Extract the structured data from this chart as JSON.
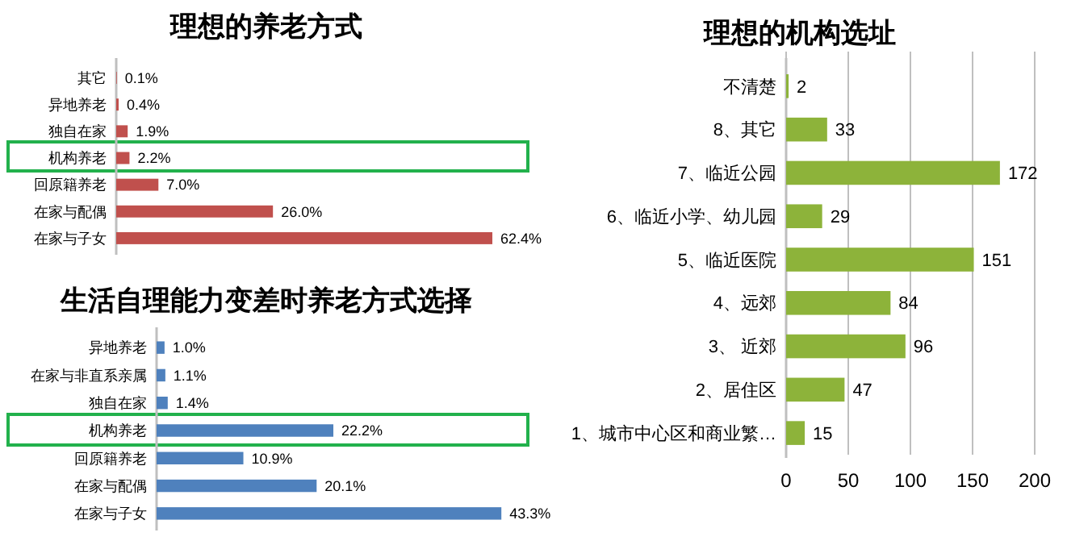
{
  "chart_data": [
    {
      "type": "bar",
      "orientation": "horizontal",
      "title": "理想的养老方式",
      "categories": [
        "其它",
        "异地养老",
        "独自在家",
        "机构养老",
        "回原籍养老",
        "在家与配偶",
        "在家与子女"
      ],
      "series": [
        {
          "color": "#c0504d",
          "values": [
            0.1,
            0.4,
            1.9,
            2.2,
            7.0,
            26.0,
            62.4
          ],
          "value_labels": [
            "0.1%",
            "0.4%",
            "1.9%",
            "2.2%",
            "7.0%",
            "26.0%",
            "62.4%"
          ]
        }
      ]
    },
    {
      "type": "bar",
      "orientation": "horizontal",
      "title": "生活自理能力变差时养老方式选择",
      "categories": [
        "异地养老",
        "在家与非直系亲属",
        "独自在家",
        "机构养老",
        "回原籍养老",
        "在家与配偶",
        "在家与子女"
      ],
      "series": [
        {
          "color": "#4f81bd",
          "values": [
            1.0,
            1.1,
            1.4,
            22.2,
            10.9,
            20.1,
            43.3
          ],
          "value_labels": [
            "1.0%",
            "1.1%",
            "1.4%",
            "22.2%",
            "10.9%",
            "20.1%",
            "43.3%"
          ]
        }
      ]
    },
    {
      "type": "bar",
      "orientation": "horizontal",
      "title": "理想的机构选址",
      "categories": [
        "不清楚",
        "8、其它",
        "7、临近公园",
        "6、临近小学、幼儿园",
        "5、临近医院",
        "4、远郊",
        "3、 近郊",
        "2、居住区",
        "1、城市中心区和商业繁…"
      ],
      "series": [
        {
          "color": "#8db33a",
          "values": [
            2,
            33,
            172,
            29,
            151,
            84,
            96,
            47,
            15
          ]
        }
      ],
      "data_labels": true,
      "xlim": [
        0,
        200
      ],
      "xticks": [
        0,
        50,
        100,
        150,
        200
      ],
      "grid": "x"
    }
  ]
}
